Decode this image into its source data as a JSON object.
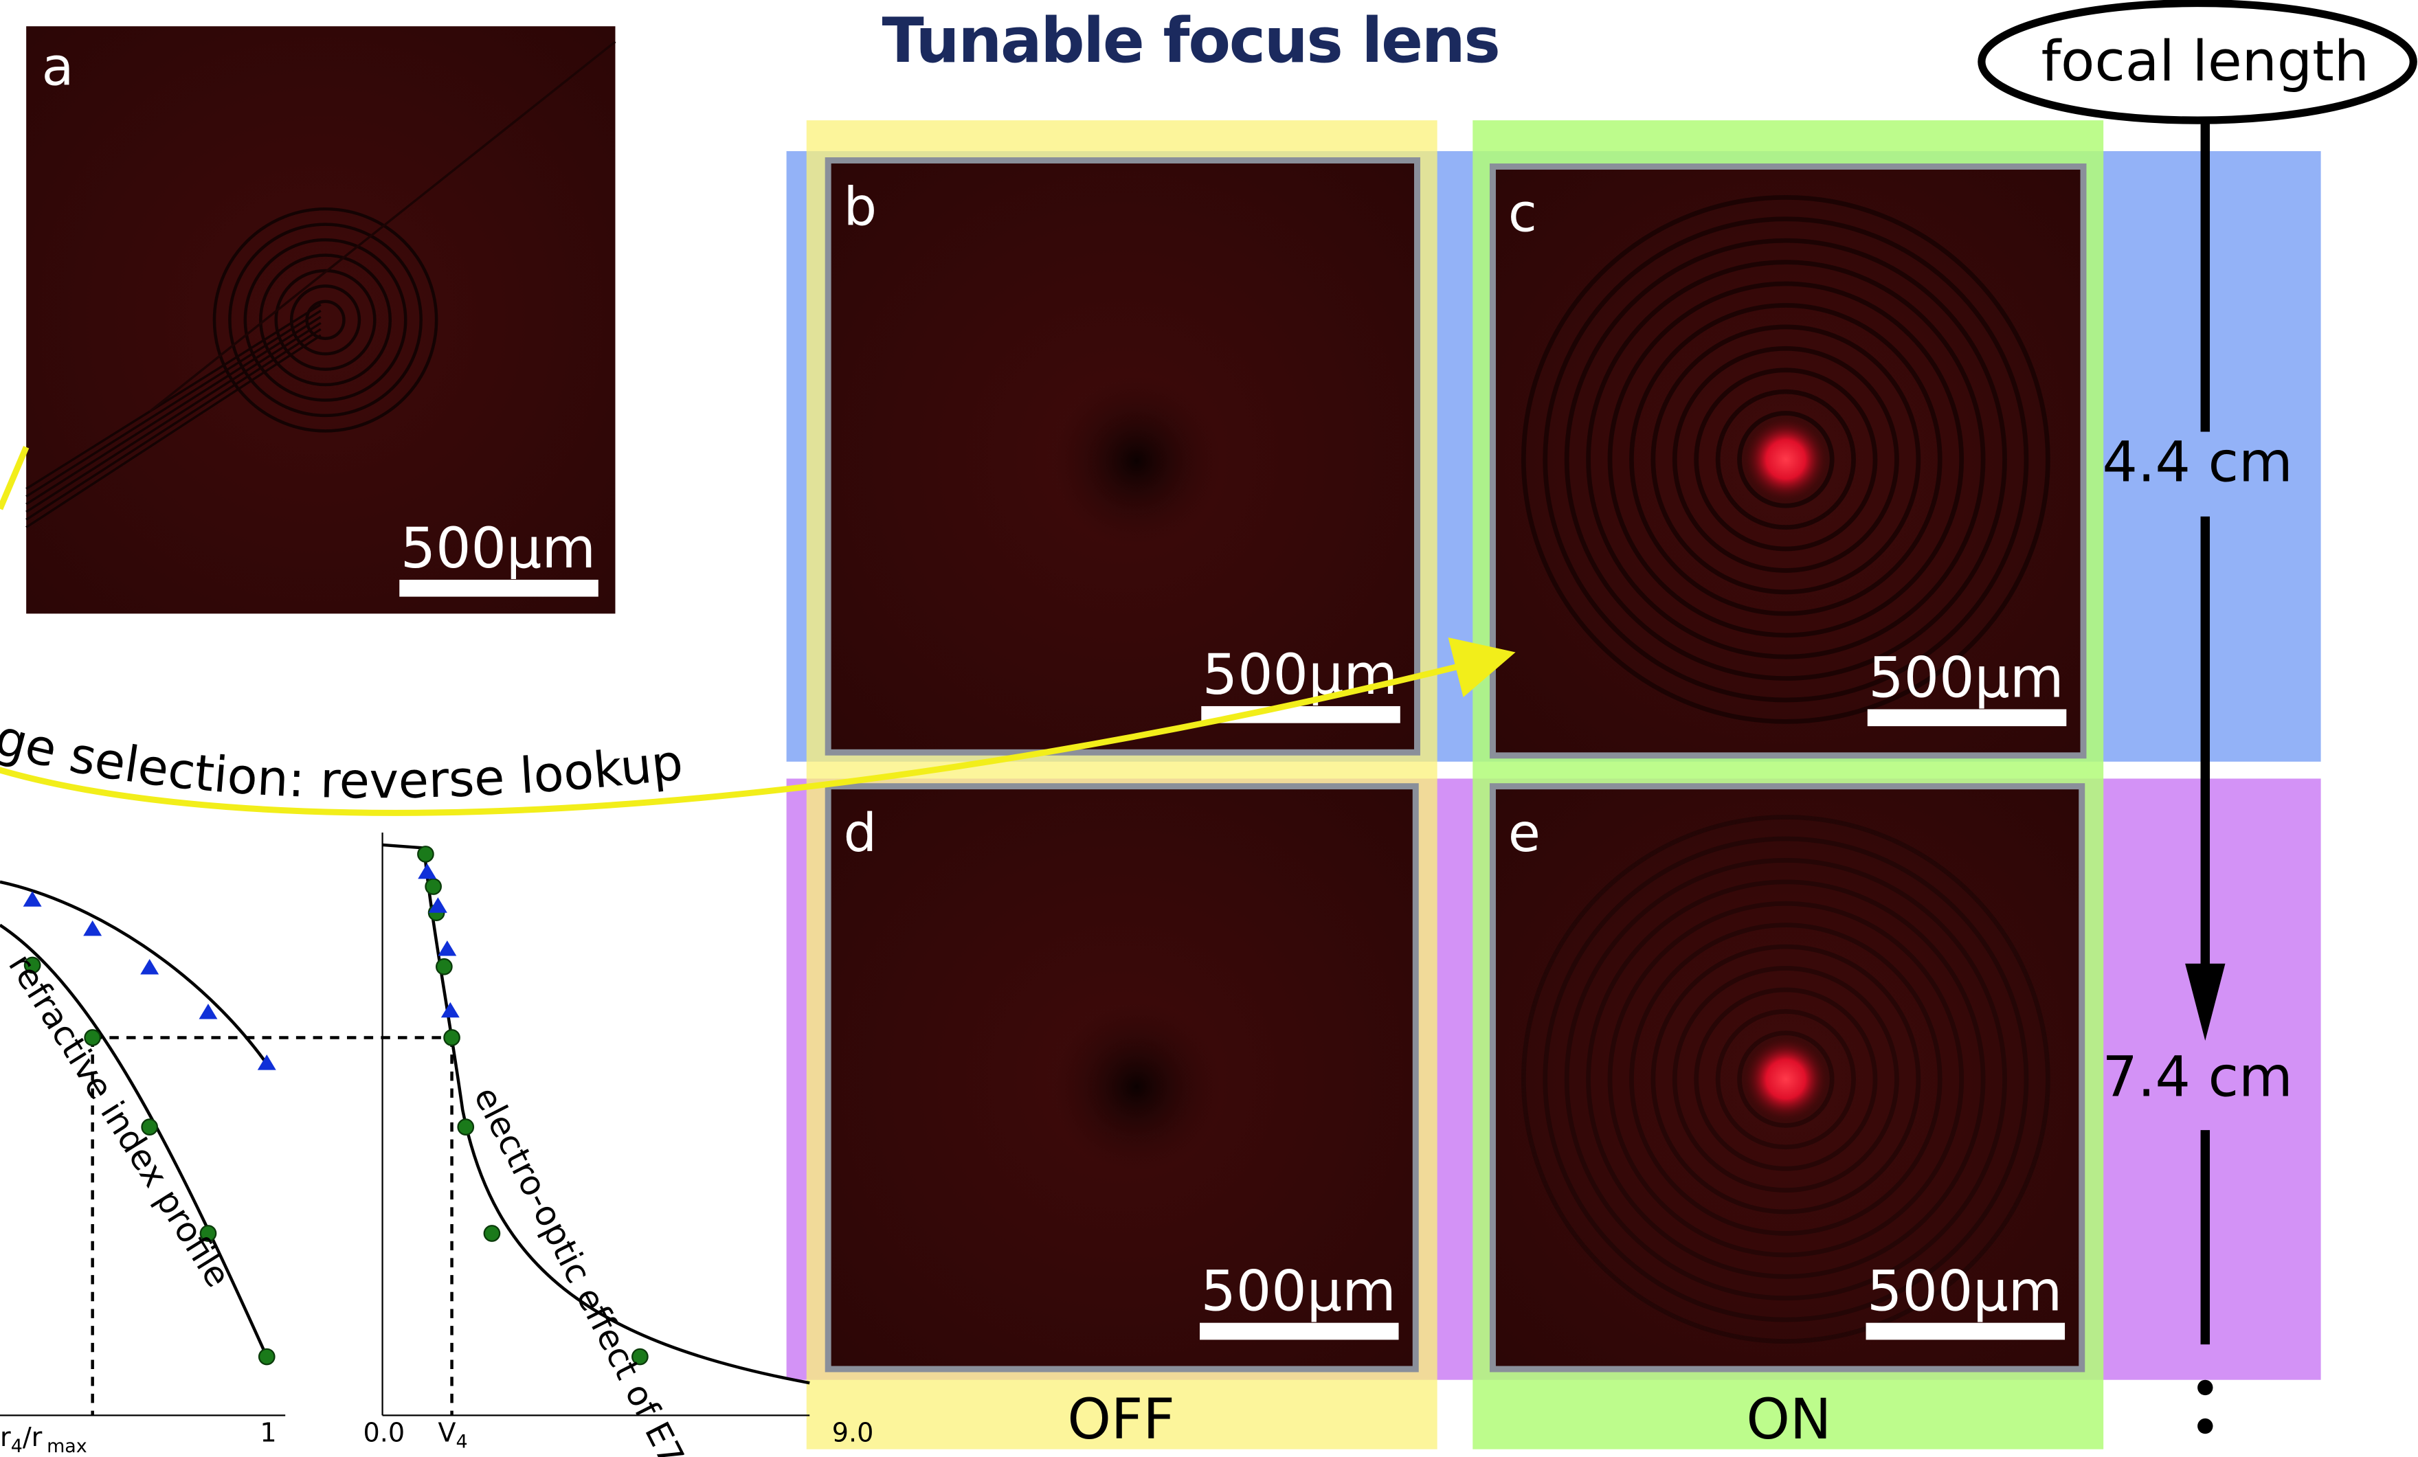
{
  "title": "Tunable focus lens",
  "panels": [
    {
      "label": "a",
      "scale_bar": "500µm"
    },
    {
      "label": "b",
      "scale_bar": "500µm"
    },
    {
      "label": "c",
      "scale_bar": "500µm"
    },
    {
      "label": "d",
      "scale_bar": "500µm"
    },
    {
      "label": "e",
      "scale_bar": "500µm"
    }
  ],
  "focal_length": {
    "label": "focal length",
    "values": [
      "4.4 cm",
      "7.4 cm"
    ]
  },
  "states": [
    "OFF",
    "ON"
  ],
  "lookup": {
    "caption": "ge selection: reverse lookup",
    "left_plot": {
      "curve_label": "refractive index profile",
      "x_label": [
        "r",
        "4",
        "/r",
        "max"
      ],
      "x_end": "1"
    },
    "right_plot": {
      "curve_label": "electro-optic effect of E7",
      "x_start": "0.0",
      "x_mid": [
        "V",
        "4"
      ],
      "x_end": "9.0"
    }
  }
}
